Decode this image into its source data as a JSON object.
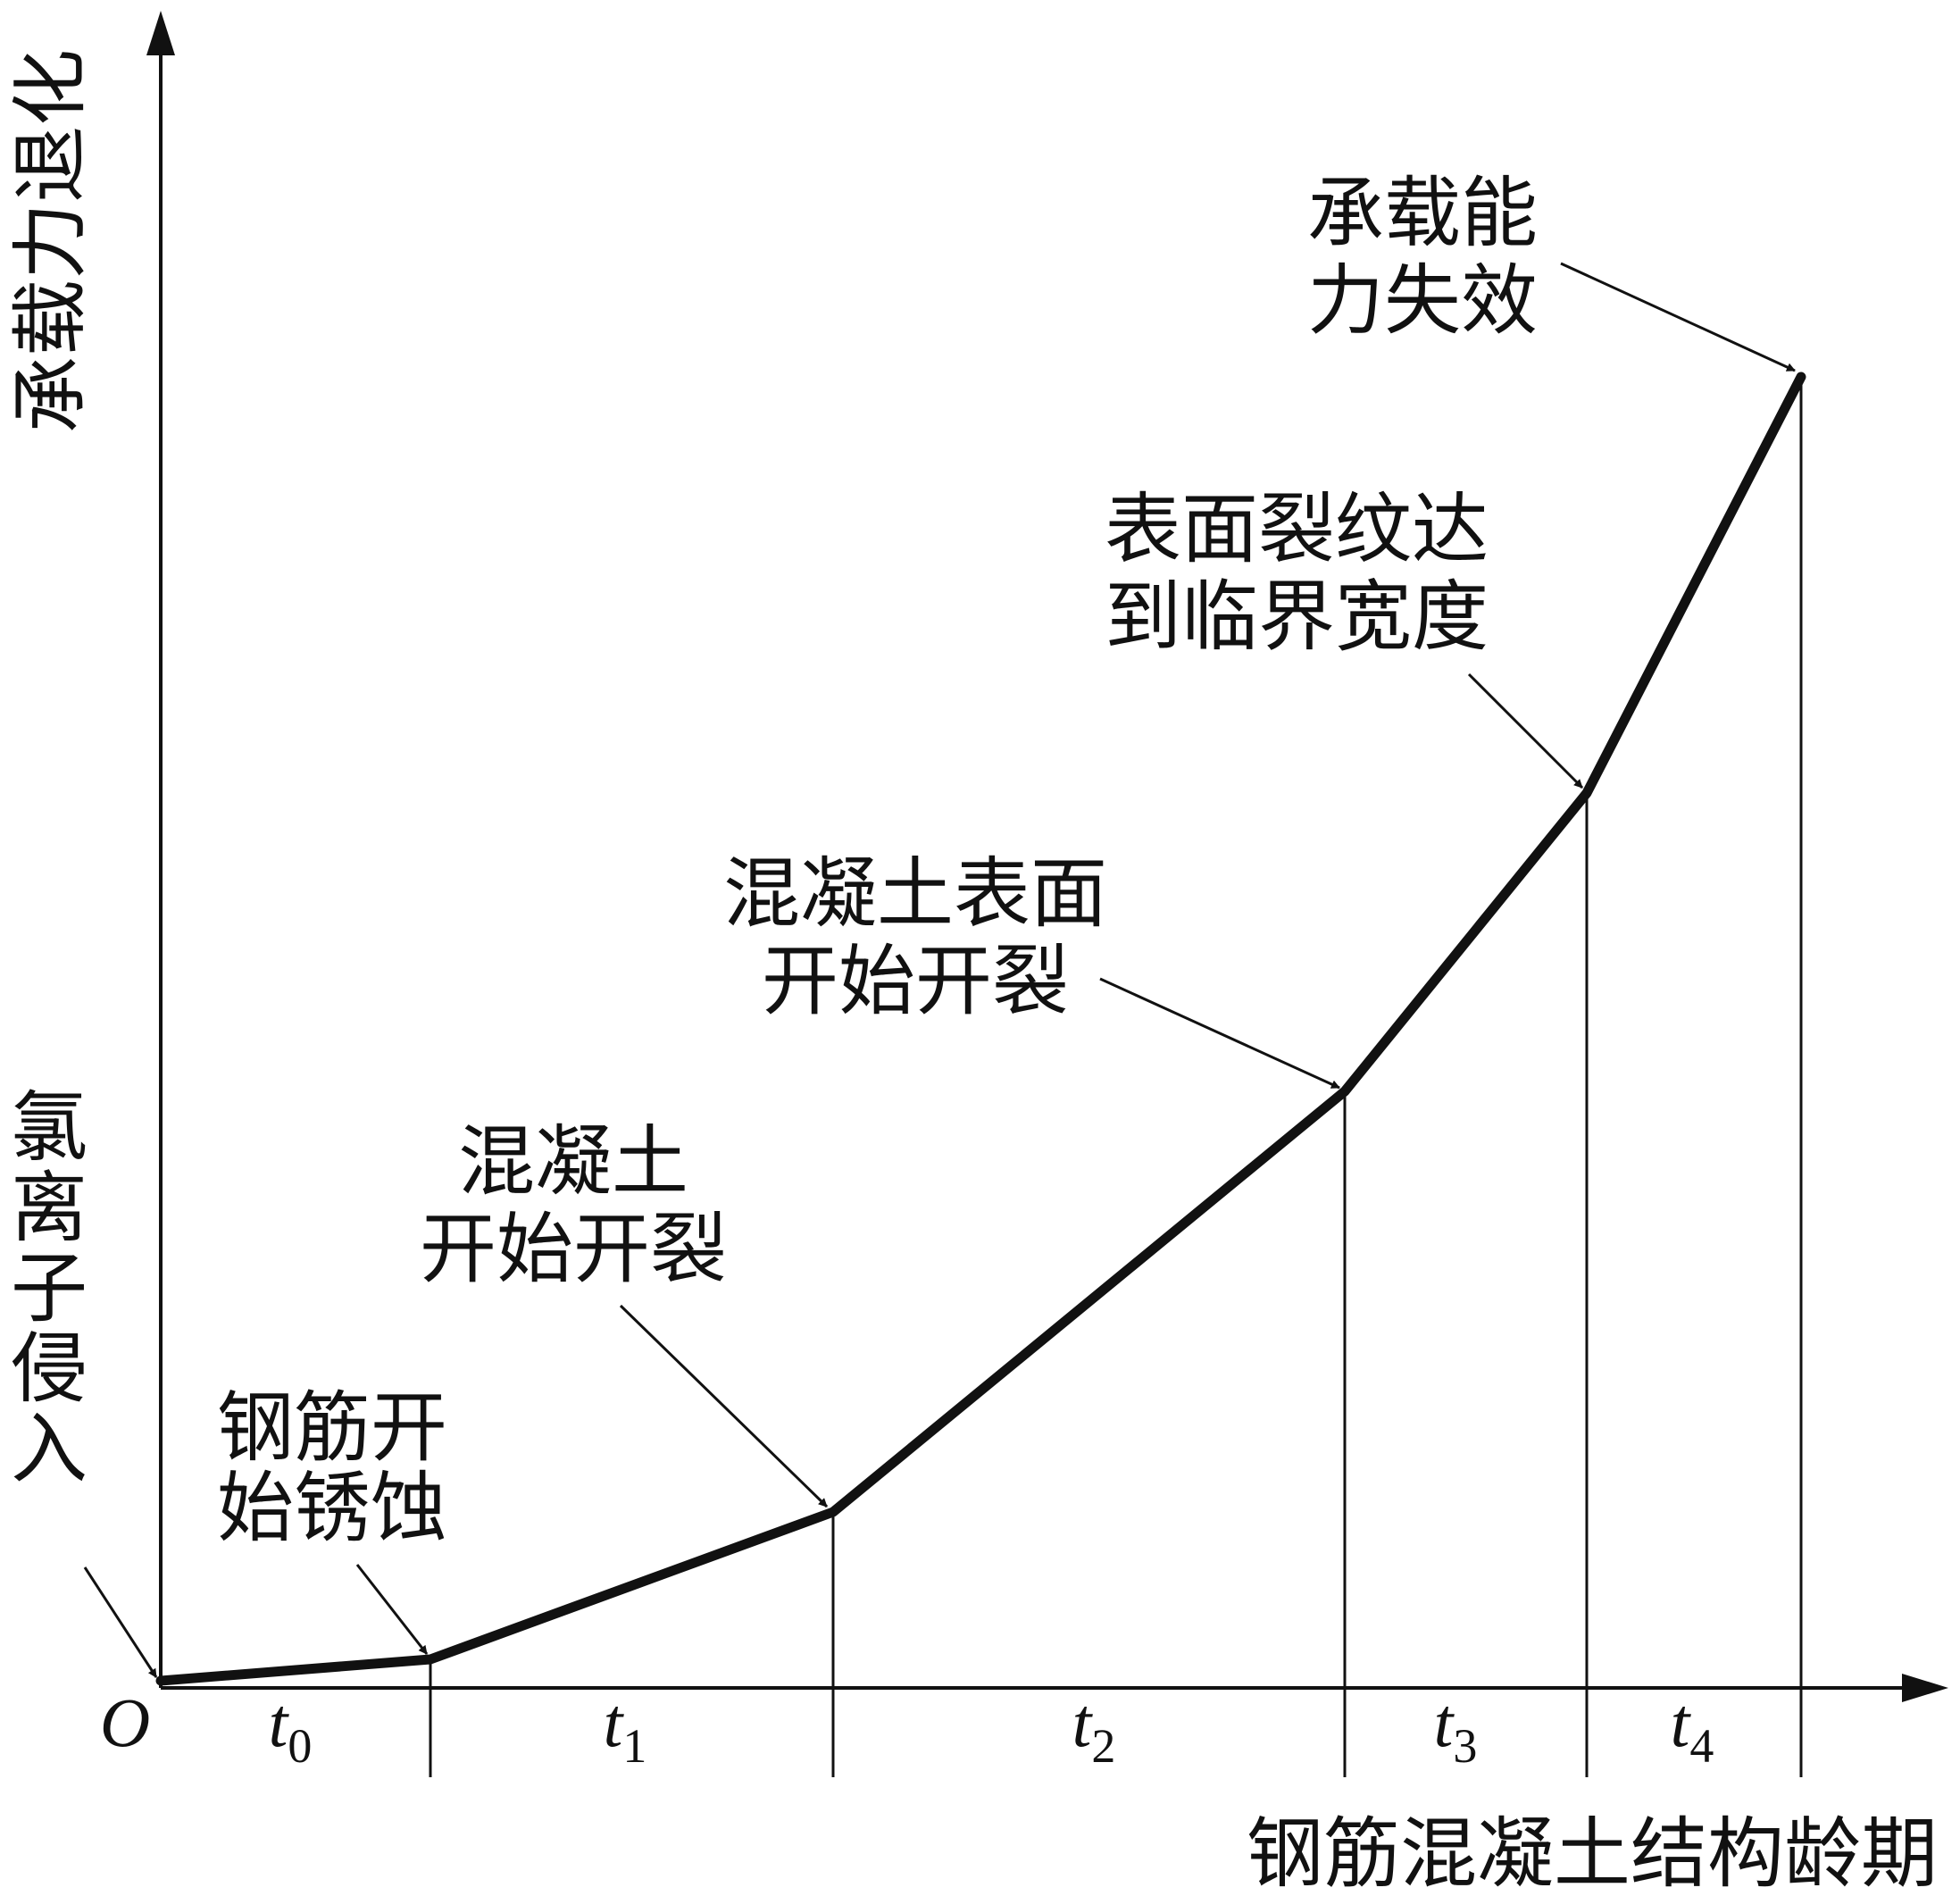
{
  "diagram": {
    "y_axis_label": "承载力退化",
    "x_axis_label": "钢筋混凝土结构龄期",
    "origin_label": "O",
    "intervals": [
      {
        "name": "t",
        "sub": "0"
      },
      {
        "name": "t",
        "sub": "1"
      },
      {
        "name": "t",
        "sub": "2"
      },
      {
        "name": "t",
        "sub": "3"
      },
      {
        "name": "t",
        "sub": "4"
      }
    ],
    "annotations": [
      {
        "id": "chloride",
        "lines": [
          "氯",
          "离",
          "子",
          "侵",
          "入"
        ]
      },
      {
        "id": "rebar-corrosion",
        "lines": [
          "钢筋开",
          "始锈蚀"
        ]
      },
      {
        "id": "concrete-crack",
        "lines": [
          "混凝土",
          "开始开裂"
        ]
      },
      {
        "id": "surface-crack",
        "lines": [
          "混凝土表面",
          "开始开裂"
        ]
      },
      {
        "id": "critical-width",
        "lines": [
          "表面裂纹达",
          "到临界宽度"
        ]
      },
      {
        "id": "failure",
        "lines": [
          "承载能",
          "力失效"
        ]
      }
    ],
    "colors": {
      "line": "#111111",
      "background": "#ffffff"
    }
  }
}
